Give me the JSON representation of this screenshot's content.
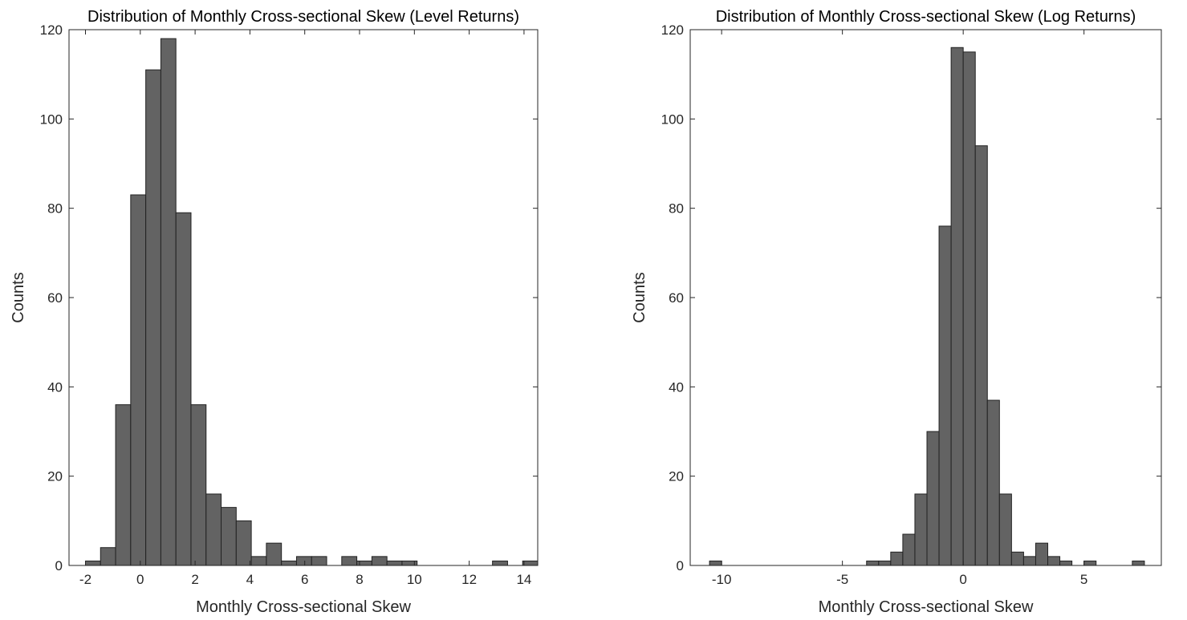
{
  "chart_data": [
    {
      "type": "bar",
      "title": "Distribution of Monthly Cross-sectional Skew (Level Returns)",
      "xlabel": "Monthly Cross-sectional Skew",
      "ylabel": "Counts",
      "xlim": [
        -2.6,
        14.5
      ],
      "ylim": [
        0,
        120
      ],
      "xticks": [
        -2,
        0,
        2,
        4,
        6,
        8,
        10,
        12,
        14
      ],
      "yticks": [
        0,
        20,
        40,
        60,
        80,
        100,
        120
      ],
      "bin_width": 0.55,
      "bin_start": -2.0,
      "values": [
        1,
        4,
        36,
        83,
        111,
        118,
        79,
        36,
        16,
        13,
        10,
        2,
        5,
        1,
        2,
        2,
        0,
        2,
        1,
        2,
        1,
        1,
        0,
        0,
        0,
        0,
        0,
        1,
        0,
        1
      ],
      "bar_color": "#636363",
      "grid": false
    },
    {
      "type": "bar",
      "title": "Distribution of Monthly Cross-sectional Skew (Log Returns)",
      "xlabel": "Monthly Cross-sectional Skew",
      "ylabel": "Counts",
      "xlim": [
        -11.3,
        8.2
      ],
      "ylim": [
        0,
        120
      ],
      "xticks": [
        -10,
        -5,
        0,
        5
      ],
      "yticks": [
        0,
        20,
        40,
        60,
        80,
        100,
        120
      ],
      "bin_width": 0.5,
      "bin_start": -10.5,
      "values": [
        1,
        0,
        0,
        0,
        0,
        0,
        0,
        0,
        0,
        0,
        0,
        0,
        0,
        1,
        1,
        3,
        7,
        16,
        30,
        76,
        116,
        115,
        94,
        37,
        16,
        3,
        2,
        5,
        2,
        1,
        0,
        1,
        0,
        0,
        0,
        1
      ],
      "bar_color": "#636363",
      "grid": false
    }
  ]
}
